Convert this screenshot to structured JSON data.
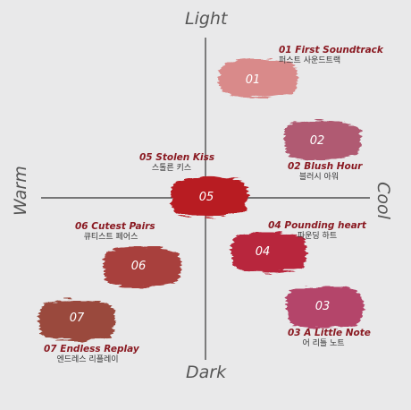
{
  "axes": {
    "top": "Light",
    "bottom": "Dark",
    "left": "Warm",
    "right": "Cool"
  },
  "swatches": [
    {
      "num": "01",
      "name": "01 First Soundtrack",
      "korean": "퍼스트 사운드트랙",
      "color": "#d98a8a"
    },
    {
      "num": "02",
      "name": "02 Blush Hour",
      "korean": "블러시 아워",
      "color": "#b05a72"
    },
    {
      "num": "03",
      "name": "03 A Little Note",
      "korean": "어 리틀 노트",
      "color": "#b4456a"
    },
    {
      "num": "04",
      "name": "04 Pounding heart",
      "korean": "파운딩 하트",
      "color": "#b8283c"
    },
    {
      "num": "05",
      "name": "05 Stolen Kiss",
      "korean": "스톨른 키스",
      "color": "#b81a22"
    },
    {
      "num": "06",
      "name": "06 Cutest Pairs",
      "korean": "큐티스트 페어스",
      "color": "#a8403e"
    },
    {
      "num": "07",
      "name": "07 Endless Replay",
      "korean": "엔드레스 리플레이",
      "color": "#9a4a3c"
    }
  ]
}
